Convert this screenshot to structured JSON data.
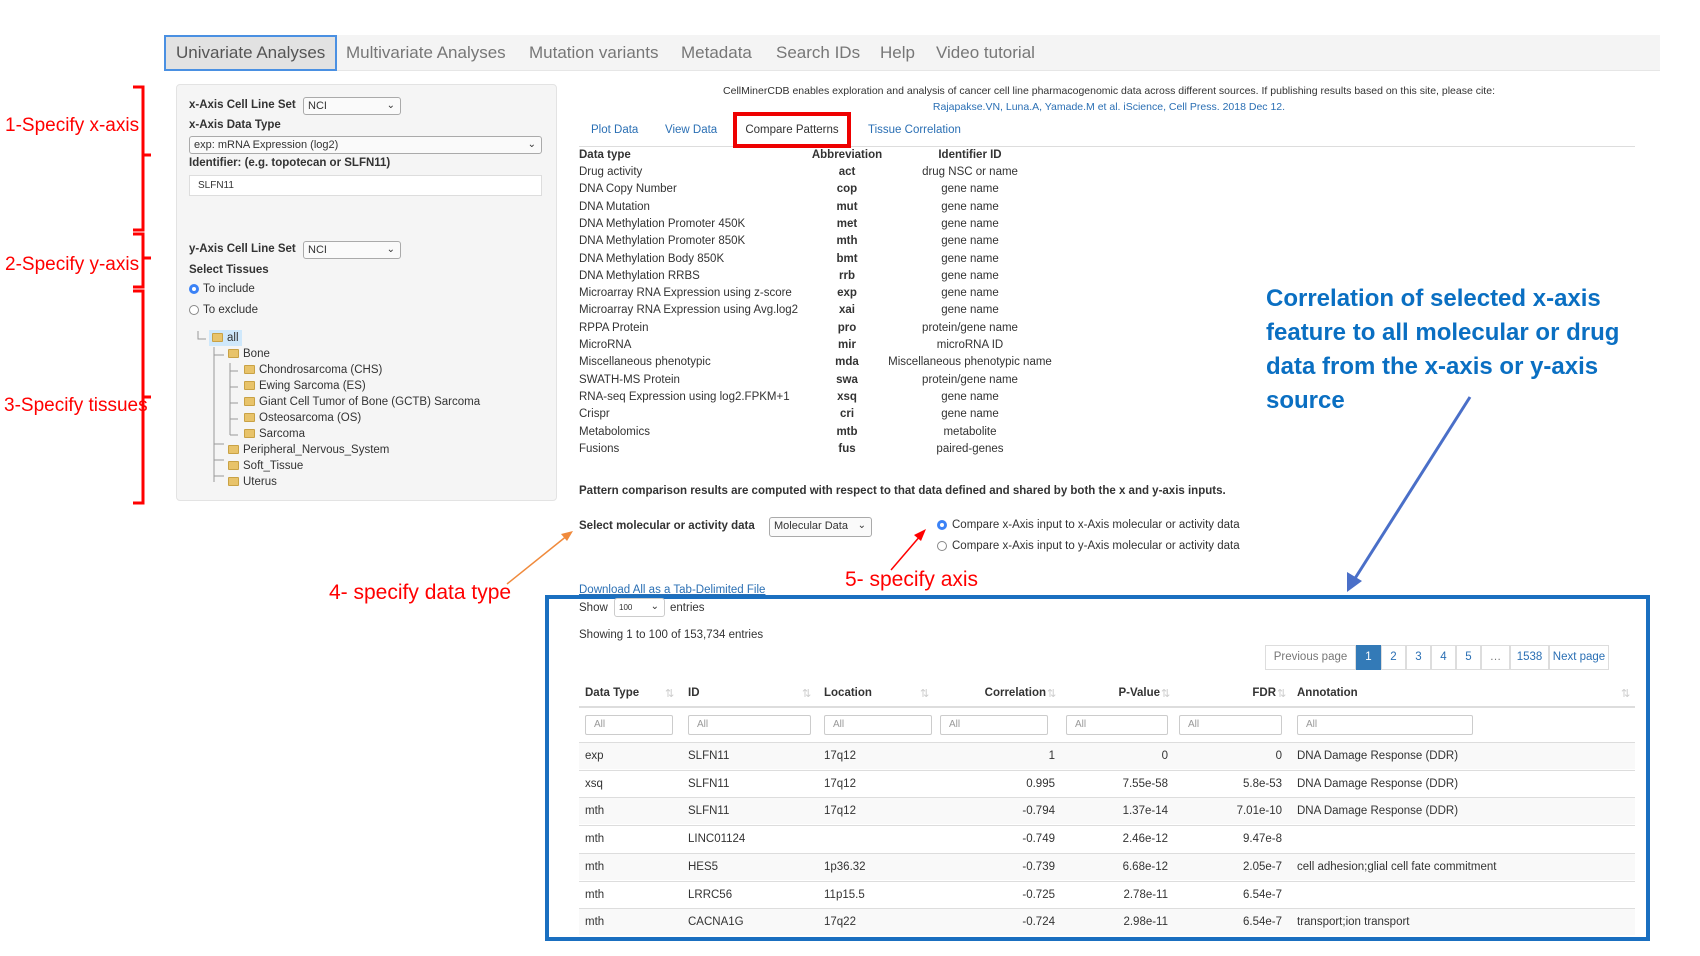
{
  "nav": {
    "items": [
      "Univariate Analyses",
      "Multivariate Analyses",
      "Mutation variants",
      "Metadata",
      "Search IDs",
      "Help",
      "Video tutorial"
    ],
    "active": 0
  },
  "left_panel": {
    "x_cell_line_label": "x-Axis Cell Line Set",
    "x_cell_line_value": "NCI",
    "x_data_type_label": "x-Axis Data Type",
    "x_data_type_value": "exp: mRNA Expression (log2)",
    "identifier_label": "Identifier: (e.g. topotecan or SLFN11)",
    "identifier_value": "SLFN11",
    "y_cell_line_label": "y-Axis Cell Line Set",
    "y_cell_line_value": "NCI",
    "select_tissues_label": "Select Tissues",
    "include_label": "To include",
    "exclude_label": "To exclude",
    "include_selected": true,
    "tree": [
      "all",
      "Bone",
      "Chondrosarcoma (CHS)",
      "Ewing Sarcoma (ES)",
      "Giant Cell Tumor of Bone (GCTB) Sarcoma",
      "Osteosarcoma (OS)",
      "Sarcoma",
      "Peripheral_Nervous_System",
      "Soft_Tissue",
      "Uterus"
    ]
  },
  "header": {
    "intro": "CellMinerCDB enables exploration and analysis of cancer cell line pharmacogenomic data across different sources. If publishing results based on this site, please cite:",
    "citation": "Rajapakse.VN, Luna.A, Yamade.M et al. iScience, Cell Press. 2018 Dec 12."
  },
  "tabs": [
    "Plot Data",
    "View Data",
    "Compare Patterns",
    "Tissue Correlation"
  ],
  "active_tab": 2,
  "datatypes": {
    "headers": [
      "Data type",
      "Abbreviation",
      "Identifier ID"
    ],
    "rows": [
      [
        "Drug activity",
        "act",
        "drug NSC or name"
      ],
      [
        "DNA Copy Number",
        "cop",
        "gene name"
      ],
      [
        "DNA Mutation",
        "mut",
        "gene name"
      ],
      [
        "DNA Methylation Promoter 450K",
        "met",
        "gene name"
      ],
      [
        "DNA Methylation Promoter 850K",
        "mth",
        "gene name"
      ],
      [
        "DNA Methylation Body 850K",
        "bmt",
        "gene name"
      ],
      [
        "DNA Methylation RRBS",
        "rrb",
        "gene name"
      ],
      [
        "Microarray RNA Expression using z-score",
        "exp",
        "gene name"
      ],
      [
        "Microarray RNA Expression using Avg.log2",
        "xai",
        "gene name"
      ],
      [
        "RPPA Protein",
        "pro",
        "protein/gene name"
      ],
      [
        "MicroRNA",
        "mir",
        "microRNA ID"
      ],
      [
        "Miscellaneous phenotypic",
        "mda",
        "Miscellaneous phenotypic name"
      ],
      [
        "SWATH-MS Protein",
        "swa",
        "protein/gene name"
      ],
      [
        "RNA-seq Expression using log2.FPKM+1",
        "xsq",
        "gene name"
      ],
      [
        "Crispr",
        "cri",
        "gene name"
      ],
      [
        "Metabolomics",
        "mtb",
        "metabolite"
      ],
      [
        "Fusions",
        "fus",
        "paired-genes"
      ]
    ]
  },
  "pattern_note": "Pattern comparison results are computed with respect to that data defined and shared by both the x and y-axis inputs.",
  "select_data_label": "Select molecular or activity data",
  "select_data_value": "Molecular Data",
  "compare_options": [
    "Compare x-Axis input to x-Axis molecular or activity data",
    "Compare x-Axis input to y-Axis molecular or activity data"
  ],
  "compare_selected": 0,
  "download_link": "Download All as a Tab-Delimited File",
  "results": {
    "show_label": "Show",
    "show_value": "100",
    "entries_label": "entries",
    "info": "Showing 1 to 100 of 153,734 entries",
    "pagination": [
      "Previous page",
      "1",
      "2",
      "3",
      "4",
      "5",
      "…",
      "1538",
      "Next page"
    ],
    "current_page": "1",
    "columns": [
      "Data Type",
      "ID",
      "Location",
      "Correlation",
      "P-Value",
      "FDR",
      "Annotation"
    ],
    "filter_placeholder": "All",
    "rows": [
      [
        "exp",
        "SLFN11",
        "17q12",
        "1",
        "0",
        "0",
        "DNA Damage Response (DDR)"
      ],
      [
        "xsq",
        "SLFN11",
        "17q12",
        "0.995",
        "7.55e-58",
        "5.8e-53",
        "DNA Damage Response (DDR)"
      ],
      [
        "mth",
        "SLFN11",
        "17q12",
        "-0.794",
        "1.37e-14",
        "7.01e-10",
        "DNA Damage Response (DDR)"
      ],
      [
        "mth",
        "LINC01124",
        "",
        "-0.749",
        "2.46e-12",
        "9.47e-8",
        ""
      ],
      [
        "mth",
        "HES5",
        "1p36.32",
        "-0.739",
        "6.68e-12",
        "2.05e-7",
        "cell adhesion;glial cell fate commitment"
      ],
      [
        "mth",
        "LRRC56",
        "11p15.5",
        "-0.725",
        "2.78e-11",
        "6.54e-7",
        ""
      ],
      [
        "mth",
        "CACNA1G",
        "17q22",
        "-0.724",
        "2.98e-11",
        "6.54e-7",
        "transport;ion transport"
      ]
    ]
  },
  "annotations": {
    "step1": "1-Specify x-axis",
    "step2": "2-Specify y-axis",
    "step3": "3-Specify tissues",
    "step4": "4- specify data type",
    "step5": "5- specify axis",
    "callout": [
      "Correlation of selected x-axis",
      "feature to all molecular or drug",
      "data from the x-axis or y-axis",
      "source"
    ],
    "colors": {
      "red": "#ff0000",
      "blue_text": "#0a6fc2",
      "blue_box": "#1a6fc0",
      "orange": "#f08a3c",
      "blue_arrow": "#4a6fc8"
    }
  }
}
